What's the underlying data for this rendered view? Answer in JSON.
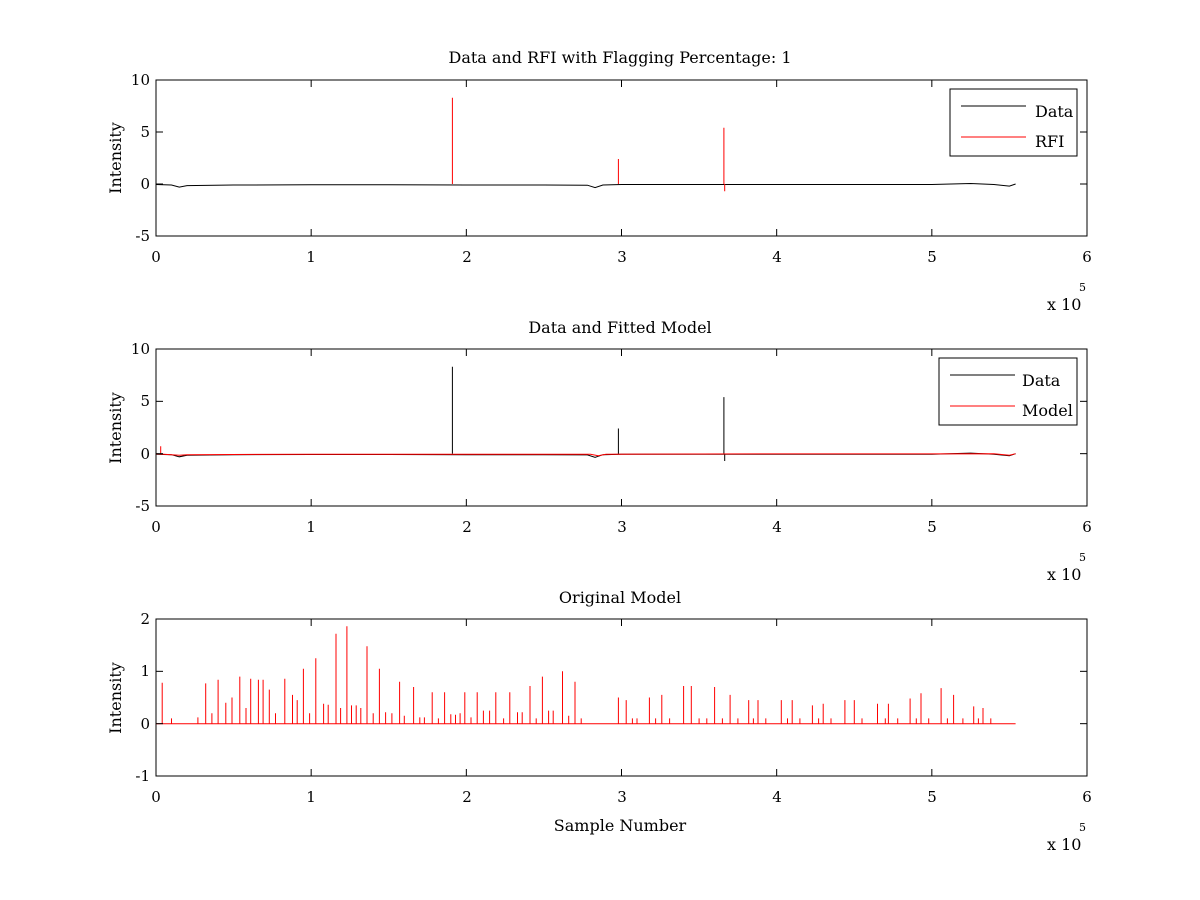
{
  "chart_data": [
    {
      "type": "line",
      "title": "Data and RFI with Flagging Percentage: 1",
      "xlabel": "",
      "ylabel": "Intensity",
      "xlim": [
        0,
        6
      ],
      "ylim": [
        -5,
        10
      ],
      "x_multiplier": "x 10",
      "x_multiplier_exponent": "5",
      "xticks": [
        "0",
        "1",
        "2",
        "3",
        "4",
        "5",
        "6"
      ],
      "yticks": [
        "-5",
        "0",
        "5",
        "10"
      ],
      "grid": false,
      "legend": "top-right",
      "series": [
        {
          "name": "Data",
          "color": "#000000",
          "baseline": [
            [
              0.0,
              -0.05
            ],
            [
              0.1,
              -0.1
            ],
            [
              0.15,
              -0.3
            ],
            [
              0.2,
              -0.15
            ],
            [
              0.5,
              -0.1
            ],
            [
              1.0,
              -0.08
            ],
            [
              1.5,
              -0.08
            ],
            [
              2.0,
              -0.1
            ],
            [
              2.5,
              -0.1
            ],
            [
              2.78,
              -0.12
            ],
            [
              2.83,
              -0.35
            ],
            [
              2.88,
              -0.1
            ],
            [
              3.0,
              -0.05
            ],
            [
              3.5,
              -0.05
            ],
            [
              4.0,
              -0.05
            ],
            [
              4.5,
              -0.05
            ],
            [
              5.0,
              -0.05
            ],
            [
              5.25,
              0.05
            ],
            [
              5.4,
              -0.05
            ],
            [
              5.5,
              -0.2
            ],
            [
              5.54,
              0.0
            ]
          ],
          "spikes": []
        },
        {
          "name": "RFI",
          "color": "#ff0000",
          "baseline": [],
          "spikes": [
            [
              1.91,
              8.3
            ],
            [
              2.98,
              2.4
            ],
            [
              3.66,
              5.4
            ],
            [
              3.665,
              -0.7
            ]
          ]
        }
      ]
    },
    {
      "type": "line",
      "title": "Data and Fitted Model",
      "xlabel": "",
      "ylabel": "Intensity",
      "xlim": [
        0,
        6
      ],
      "ylim": [
        -5,
        10
      ],
      "x_multiplier": "x 10",
      "x_multiplier_exponent": "5",
      "xticks": [
        "0",
        "1",
        "2",
        "3",
        "4",
        "5",
        "6"
      ],
      "yticks": [
        "-5",
        "0",
        "5",
        "10"
      ],
      "grid": false,
      "legend": "top-right",
      "series": [
        {
          "name": "Data",
          "color": "#000000",
          "baseline": [
            [
              0.0,
              -0.05
            ],
            [
              0.1,
              -0.1
            ],
            [
              0.15,
              -0.3
            ],
            [
              0.2,
              -0.15
            ],
            [
              0.5,
              -0.1
            ],
            [
              1.0,
              -0.08
            ],
            [
              1.5,
              -0.08
            ],
            [
              2.0,
              -0.1
            ],
            [
              2.5,
              -0.1
            ],
            [
              2.78,
              -0.12
            ],
            [
              2.83,
              -0.35
            ],
            [
              2.88,
              -0.1
            ],
            [
              3.0,
              -0.05
            ],
            [
              3.5,
              -0.05
            ],
            [
              4.0,
              -0.05
            ],
            [
              4.5,
              -0.05
            ],
            [
              5.0,
              -0.05
            ],
            [
              5.25,
              0.05
            ],
            [
              5.4,
              -0.05
            ],
            [
              5.5,
              -0.2
            ],
            [
              5.54,
              0.0
            ]
          ],
          "spikes": [
            [
              1.91,
              8.3
            ],
            [
              2.98,
              2.4
            ],
            [
              3.66,
              5.4
            ],
            [
              3.665,
              -0.7
            ]
          ]
        },
        {
          "name": "Model",
          "color": "#ff0000",
          "baseline": [
            [
              0.0,
              0.0
            ],
            [
              0.15,
              -0.15
            ],
            [
              0.2,
              -0.1
            ],
            [
              1.0,
              -0.05
            ],
            [
              2.0,
              -0.05
            ],
            [
              2.8,
              -0.05
            ],
            [
              2.85,
              -0.2
            ],
            [
              2.9,
              -0.05
            ],
            [
              4.0,
              -0.02
            ],
            [
              5.0,
              -0.02
            ],
            [
              5.4,
              0.0
            ],
            [
              5.5,
              -0.15
            ],
            [
              5.54,
              0.0
            ]
          ],
          "spikes": [
            [
              0.03,
              0.7
            ]
          ]
        }
      ]
    },
    {
      "type": "line",
      "title": "Original Model",
      "xlabel": "Sample Number",
      "ylabel": "Intensity",
      "xlim": [
        0,
        6
      ],
      "ylim": [
        -1,
        2
      ],
      "x_multiplier": "x 10",
      "x_multiplier_exponent": "5",
      "xticks": [
        "0",
        "1",
        "2",
        "3",
        "4",
        "5",
        "6"
      ],
      "yticks": [
        "-1",
        "0",
        "1",
        "2"
      ],
      "grid": false,
      "legend": "none",
      "series": [
        {
          "name": "",
          "color": "#ff0000",
          "baseline": [
            [
              0.0,
              0.0
            ],
            [
              5.54,
              0.0
            ]
          ],
          "spikes": [
            [
              0.04,
              0.78
            ],
            [
              0.1,
              0.1
            ],
            [
              0.27,
              0.12
            ],
            [
              0.32,
              0.77
            ],
            [
              0.36,
              0.2
            ],
            [
              0.4,
              0.84
            ],
            [
              0.45,
              0.4
            ],
            [
              0.49,
              0.5
            ],
            [
              0.54,
              0.9
            ],
            [
              0.58,
              0.3
            ],
            [
              0.61,
              0.86
            ],
            [
              0.66,
              0.84
            ],
            [
              0.69,
              0.84
            ],
            [
              0.73,
              0.65
            ],
            [
              0.77,
              0.2
            ],
            [
              0.83,
              0.86
            ],
            [
              0.88,
              0.55
            ],
            [
              0.91,
              0.45
            ],
            [
              0.95,
              1.05
            ],
            [
              0.99,
              0.2
            ],
            [
              1.03,
              1.25
            ],
            [
              1.08,
              0.38
            ],
            [
              1.11,
              0.36
            ],
            [
              1.16,
              1.72
            ],
            [
              1.19,
              0.3
            ],
            [
              1.23,
              1.86
            ],
            [
              1.26,
              0.35
            ],
            [
              1.29,
              0.35
            ],
            [
              1.32,
              0.3
            ],
            [
              1.36,
              1.48
            ],
            [
              1.4,
              0.2
            ],
            [
              1.44,
              1.05
            ],
            [
              1.48,
              0.22
            ],
            [
              1.52,
              0.2
            ],
            [
              1.57,
              0.8
            ],
            [
              1.6,
              0.15
            ],
            [
              1.66,
              0.7
            ],
            [
              1.7,
              0.12
            ],
            [
              1.73,
              0.12
            ],
            [
              1.78,
              0.6
            ],
            [
              1.82,
              0.1
            ],
            [
              1.86,
              0.6
            ],
            [
              1.9,
              0.18
            ],
            [
              1.93,
              0.17
            ],
            [
              1.96,
              0.2
            ],
            [
              1.99,
              0.6
            ],
            [
              2.03,
              0.12
            ],
            [
              2.07,
              0.6
            ],
            [
              2.11,
              0.25
            ],
            [
              2.15,
              0.25
            ],
            [
              2.19,
              0.6
            ],
            [
              2.24,
              0.1
            ],
            [
              2.28,
              0.6
            ],
            [
              2.33,
              0.22
            ],
            [
              2.36,
              0.22
            ],
            [
              2.41,
              0.72
            ],
            [
              2.45,
              0.1
            ],
            [
              2.49,
              0.9
            ],
            [
              2.53,
              0.25
            ],
            [
              2.56,
              0.25
            ],
            [
              2.62,
              1.0
            ],
            [
              2.66,
              0.15
            ],
            [
              2.7,
              0.8
            ],
            [
              2.74,
              0.1
            ],
            [
              2.98,
              0.5
            ],
            [
              3.03,
              0.45
            ],
            [
              3.07,
              0.1
            ],
            [
              3.1,
              0.1
            ],
            [
              3.18,
              0.5
            ],
            [
              3.22,
              0.1
            ],
            [
              3.26,
              0.55
            ],
            [
              3.31,
              0.1
            ],
            [
              3.4,
              0.72
            ],
            [
              3.45,
              0.72
            ],
            [
              3.5,
              0.1
            ],
            [
              3.55,
              0.1
            ],
            [
              3.6,
              0.7
            ],
            [
              3.65,
              0.1
            ],
            [
              3.7,
              0.55
            ],
            [
              3.75,
              0.1
            ],
            [
              3.82,
              0.45
            ],
            [
              3.85,
              0.1
            ],
            [
              3.88,
              0.45
            ],
            [
              3.93,
              0.1
            ],
            [
              4.03,
              0.45
            ],
            [
              4.07,
              0.1
            ],
            [
              4.1,
              0.45
            ],
            [
              4.15,
              0.1
            ],
            [
              4.23,
              0.35
            ],
            [
              4.27,
              0.1
            ],
            [
              4.3,
              0.38
            ],
            [
              4.35,
              0.1
            ],
            [
              4.44,
              0.45
            ],
            [
              4.5,
              0.45
            ],
            [
              4.55,
              0.1
            ],
            [
              4.65,
              0.38
            ],
            [
              4.7,
              0.1
            ],
            [
              4.72,
              0.38
            ],
            [
              4.78,
              0.1
            ],
            [
              4.86,
              0.48
            ],
            [
              4.9,
              0.1
            ],
            [
              4.93,
              0.58
            ],
            [
              4.98,
              0.1
            ],
            [
              5.06,
              0.68
            ],
            [
              5.1,
              0.1
            ],
            [
              5.14,
              0.55
            ],
            [
              5.2,
              0.1
            ],
            [
              5.27,
              0.33
            ],
            [
              5.3,
              0.1
            ],
            [
              5.33,
              0.3
            ],
            [
              5.38,
              0.1
            ]
          ]
        }
      ]
    }
  ]
}
